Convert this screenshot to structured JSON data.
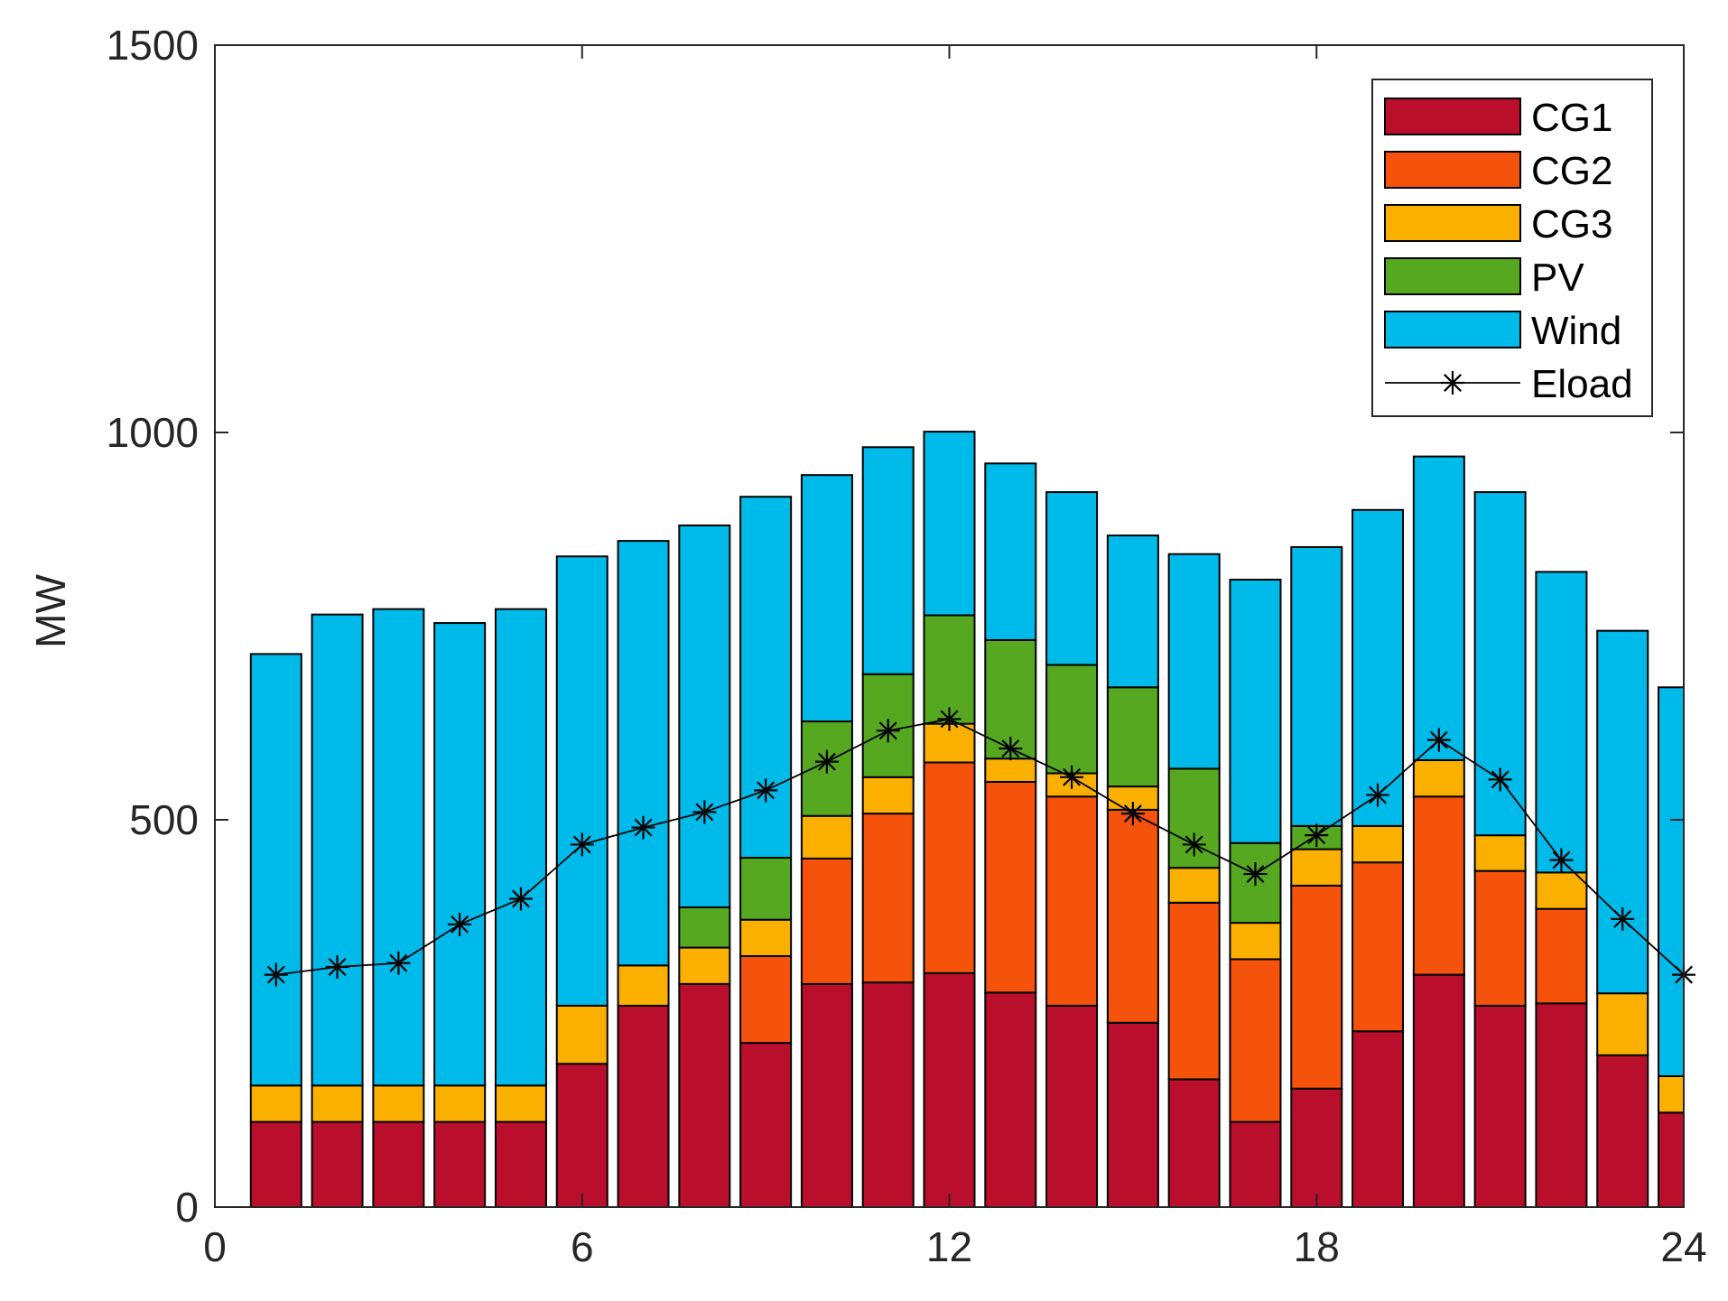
{
  "chart_data": {
    "type": "stacked-bar-with-line",
    "title": "",
    "xlabel": "",
    "ylabel": "MW",
    "xlim": [
      0,
      24
    ],
    "ylim": [
      0,
      1500
    ],
    "xticks": [
      0,
      6,
      12,
      18,
      24
    ],
    "yticks": [
      0,
      500,
      1000,
      1500
    ],
    "x": [
      1,
      2,
      3,
      4,
      5,
      6,
      7,
      8,
      9,
      10,
      11,
      12,
      13,
      14,
      15,
      16,
      17,
      18,
      19,
      20,
      21,
      22,
      23,
      24
    ],
    "series": [
      {
        "name": "CG1",
        "color": "#b90e2c",
        "values": [
          110,
          110,
          110,
          110,
          110,
          185,
          260,
          288,
          212,
          288,
          290,
          302,
          277,
          260,
          238,
          165,
          110,
          153,
          227,
          300,
          260,
          263,
          196,
          122
        ]
      },
      {
        "name": "CG2",
        "color": "#f5520c",
        "values": [
          0,
          0,
          0,
          0,
          0,
          0,
          0,
          0,
          112,
          162,
          218,
          272,
          272,
          270,
          275,
          228,
          210,
          262,
          218,
          230,
          174,
          122,
          0,
          0
        ]
      },
      {
        "name": "CG3",
        "color": "#fbb000",
        "values": [
          47,
          47,
          47,
          47,
          47,
          75,
          52,
          47,
          47,
          55,
          47,
          50,
          30,
          30,
          30,
          45,
          47,
          47,
          47,
          47,
          46,
          47,
          80,
          47
        ]
      },
      {
        "name": "PV",
        "color": "#55a820",
        "values": [
          0,
          0,
          0,
          0,
          0,
          0,
          0,
          52,
          80,
          122,
          133,
          140,
          153,
          140,
          128,
          128,
          103,
          30,
          0,
          0,
          0,
          0,
          0,
          0
        ]
      },
      {
        "name": "Wind",
        "color": "#00bbea",
        "values": [
          557,
          608,
          615,
          597,
          615,
          580,
          548,
          493,
          466,
          318,
          293,
          237,
          228,
          223,
          196,
          277,
          340,
          360,
          408,
          392,
          443,
          388,
          468,
          502
        ]
      }
    ],
    "line": {
      "name": "Eload",
      "color": "#000000",
      "marker": "asterisk",
      "values": [
        300,
        310,
        315,
        365,
        398,
        468,
        490,
        510,
        538,
        575,
        615,
        630,
        592,
        555,
        508,
        468,
        430,
        480,
        532,
        603,
        552,
        448,
        372,
        300
      ]
    },
    "legend": {
      "placement": "top-right",
      "entries": [
        "CG1",
        "CG2",
        "CG3",
        "PV",
        "Wind",
        "Eload"
      ]
    }
  }
}
